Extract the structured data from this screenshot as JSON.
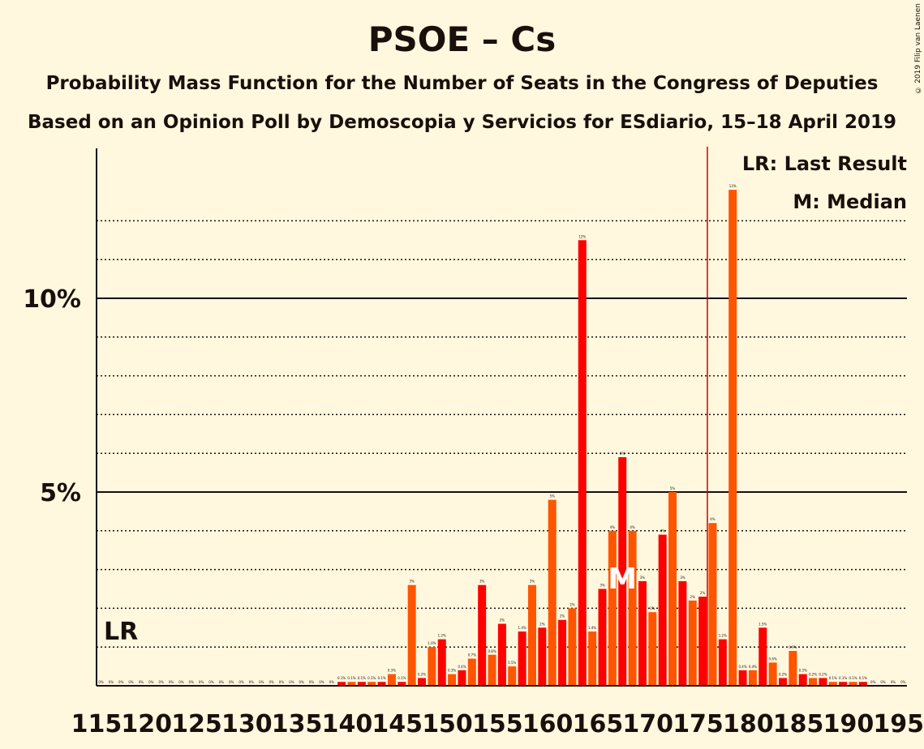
{
  "title": "PSOE – Cs",
  "subtitle": "Probability Mass Function for the Number of Seats in the Congress of Deputies",
  "subtitle2": "Based on an Opinion Poll by Demoscopia y Servicios for ESdiario, 15–18 April 2019",
  "copyright": "© 2019 Filip van Laenen",
  "legend": {
    "last_result": "LR: Last Result",
    "median": "M: Median"
  },
  "lr_marker_label": "LR",
  "median_marker_label": "M",
  "colors": {
    "background": "#fff8df",
    "bar_primary": "#ff0000",
    "bar_secondary": "#ff5500",
    "last_result_line": "#cc0000",
    "text": "#1a0f0a"
  },
  "chart_data": {
    "type": "bar",
    "xlabel": "",
    "ylabel": "",
    "ylim": [
      0,
      13.9
    ],
    "y_ticks": [
      {
        "value": 5,
        "label": "5%"
      },
      {
        "value": 10,
        "label": "10%"
      }
    ],
    "y_minor_gridlines": [
      1,
      2,
      3,
      4,
      6,
      7,
      8,
      9,
      11,
      12
    ],
    "x_tick_labels": [
      "115",
      "120",
      "125",
      "130",
      "135",
      "140",
      "145",
      "150",
      "155",
      "160",
      "165",
      "170",
      "175",
      "180",
      "185",
      "190",
      "195"
    ],
    "last_result_seats": 115,
    "majority_line_seat": 176,
    "median_seats": 167,
    "seats": [
      115,
      116,
      117,
      118,
      119,
      120,
      121,
      122,
      123,
      124,
      125,
      126,
      127,
      128,
      129,
      130,
      131,
      132,
      133,
      134,
      135,
      136,
      137,
      138,
      139,
      140,
      141,
      142,
      143,
      144,
      145,
      146,
      147,
      148,
      149,
      150,
      151,
      152,
      153,
      154,
      155,
      156,
      157,
      158,
      159,
      160,
      161,
      162,
      163,
      164,
      165,
      166,
      167,
      168,
      169,
      170,
      171,
      172,
      173,
      174,
      175,
      176,
      177,
      178,
      179,
      180,
      181,
      182,
      183,
      184,
      185,
      186,
      187,
      188,
      189,
      190,
      191,
      192,
      193,
      194,
      195
    ],
    "values": [
      0,
      0,
      0,
      0,
      0,
      0,
      0,
      0,
      0,
      0,
      0,
      0,
      0,
      0,
      0,
      0,
      0,
      0,
      0,
      0,
      0,
      0,
      0,
      0,
      0.1,
      0.1,
      0.1,
      0.1,
      0.1,
      0.3,
      0.1,
      2.6,
      0.2,
      1.0,
      1.2,
      0.3,
      0.4,
      0.7,
      2.6,
      0.8,
      1.6,
      0.5,
      1.4,
      2.6,
      1.5,
      4.8,
      1.7,
      2.0,
      11.5,
      1.4,
      2.5,
      4.0,
      5.9,
      4.0,
      2.7,
      1.9,
      3.9,
      5.0,
      2.7,
      2.2,
      2.3,
      4.2,
      1.2,
      12.8,
      0.4,
      0.4,
      1.5,
      0.6,
      0.2,
      0.9,
      0.3,
      0.2,
      0.2,
      0.1,
      0.1,
      0.1,
      0.1,
      0,
      0,
      0,
      0
    ],
    "value_labels": [
      "0%",
      "0%",
      "0%",
      "0%",
      "0%",
      "0%",
      "0%",
      "0%",
      "0%",
      "0%",
      "0%",
      "0%",
      "0%",
      "0%",
      "0%",
      "0%",
      "0%",
      "0%",
      "0%",
      "0%",
      "0%",
      "0%",
      "0%",
      "0%",
      "0.1%",
      "0.1%",
      "0.1%",
      "0.1%",
      "0.1%",
      "0.3%",
      "0.1%",
      "3%",
      "0.2%",
      "1.0%",
      "1.2%",
      "0.3%",
      "0.4%",
      "0.7%",
      "3%",
      "0.8%",
      "2%",
      "0.5%",
      "1.4%",
      "3%",
      "2%",
      "5%",
      "2%",
      "2%",
      "12%",
      "1.4%",
      "3%",
      "4%",
      "6%",
      "4%",
      "3%",
      "2%",
      "4%",
      "5%",
      "3%",
      "2%",
      "2%",
      "4%",
      "1.2%",
      "13%",
      "0.4%",
      "0.4%",
      "1.5%",
      "0.6%",
      "0.2%",
      "0.9%",
      "0.3%",
      "0.2%",
      "0.2%",
      "0.1%",
      "0.1%",
      "0.1%",
      "0.1%",
      "0%",
      "0%",
      "0%",
      "0%"
    ]
  }
}
